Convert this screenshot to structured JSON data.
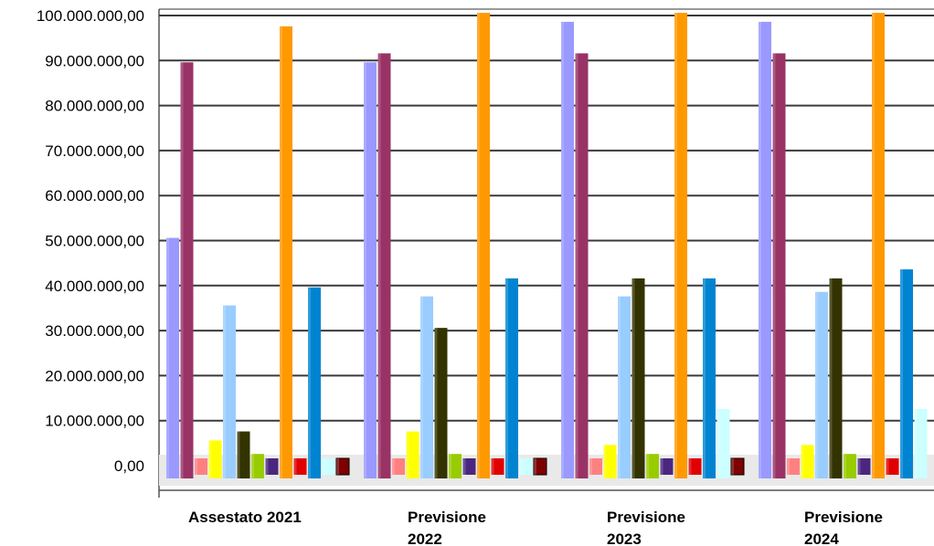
{
  "chart_data": {
    "type": "bar",
    "title": "",
    "xlabel": "",
    "ylabel": "",
    "ylim": [
      0,
      100000000
    ],
    "grid": true,
    "legend": "none",
    "categories": [
      [
        "Assestato 2021"
      ],
      [
        "Previsione",
        "2022"
      ],
      [
        "Previsione",
        "2023"
      ],
      [
        "Previsione",
        "2024"
      ]
    ],
    "y_ticks": [
      {
        "value": 0,
        "label": "0,00"
      },
      {
        "value": 10000000,
        "label": "10.000.000,00"
      },
      {
        "value": 20000000,
        "label": "20.000.000,00"
      },
      {
        "value": 30000000,
        "label": "30.000.000,00"
      },
      {
        "value": 40000000,
        "label": "40.000.000,00"
      },
      {
        "value": 50000000,
        "label": "50.000.000,00"
      },
      {
        "value": 60000000,
        "label": "60.000.000,00"
      },
      {
        "value": 70000000,
        "label": "70.000.000,00"
      },
      {
        "value": 80000000,
        "label": "80.000.000,00"
      },
      {
        "value": 90000000,
        "label": "90.000.000,00"
      },
      {
        "value": 100000000,
        "label": "100.000.000,00"
      }
    ],
    "series": [
      {
        "color": "#9999FF",
        "values": [
          50600000,
          89600000,
          98600000,
          98600000
        ]
      },
      {
        "color": "#993366",
        "values": [
          89600000,
          91600000,
          91600000,
          91600000
        ]
      },
      {
        "color": "#FF8080",
        "values": [
          1000,
          1000,
          1000,
          1000
        ]
      },
      {
        "color": "#FFFF00",
        "values": [
          5600000,
          7600000,
          4600000,
          4600000
        ]
      },
      {
        "color": "#99CCFF",
        "values": [
          35600000,
          37600000,
          37600000,
          38600000
        ]
      },
      {
        "color": "#333300",
        "values": [
          7600000,
          30600000,
          41600000,
          41600000
        ]
      },
      {
        "color": "#99CC00",
        "values": [
          2600000,
          2600000,
          2600000,
          2600000
        ]
      },
      {
        "color": "#4B2680",
        "values": [
          1000,
          1000,
          1000,
          1000
        ]
      },
      {
        "color": "#FF9900",
        "values": [
          97600000,
          100600000,
          100600000,
          100600000
        ]
      },
      {
        "color": "#E00000",
        "values": [
          1000,
          1000,
          1000,
          1000
        ]
      },
      {
        "color": "#0084D1",
        "values": [
          39600000,
          41600000,
          41600000,
          43600000
        ]
      },
      {
        "color": "#CCFFFF",
        "values": [
          0,
          2000000,
          12600000,
          12600000
        ]
      },
      {
        "color": "#7E0000",
        "values": [
          1000,
          1000,
          1000,
          1000
        ]
      }
    ]
  }
}
